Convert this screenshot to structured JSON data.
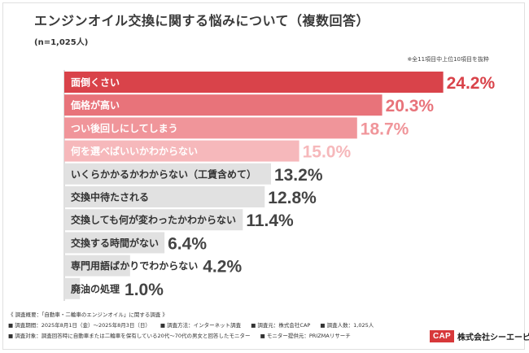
{
  "header": {
    "title": "エンジンオイル交換に関する悩みについて（複数回答）",
    "sample": "(n=1,025人)",
    "note": "※全11項目中上位10項目を抜粋"
  },
  "chart_data": {
    "type": "bar",
    "orientation": "horizontal",
    "xlim": [
      0,
      25
    ],
    "categories": [
      "面倒くさい",
      "価格が高い",
      "つい後回しにしてしまう",
      "何を選べばいいかわからない",
      "いくらかかるかわからない（工賃含めて）",
      "交換中待たされる",
      "交換しても何が変わったかわからない",
      "交換する時間がない",
      "専門用語ばかりでわからない",
      "廃油の処理"
    ],
    "values": [
      24.2,
      20.3,
      18.7,
      15.0,
      13.2,
      12.8,
      11.4,
      6.4,
      4.2,
      1.0
    ],
    "value_labels": [
      "24.2%",
      "20.3%",
      "18.7%",
      "15.0%",
      "13.2%",
      "12.8%",
      "11.4%",
      "6.4%",
      "4.2%",
      "1.0%"
    ],
    "colors": [
      "#d9434a",
      "#e8737a",
      "#f0959a",
      "#f6b8bb",
      "#e1e1e1",
      "#e1e1e1",
      "#e1e1e1",
      "#e1e1e1",
      "#e1e1e1",
      "#e1e1e1"
    ],
    "label_colors": [
      "#ffffff",
      "#ffffff",
      "#ffffff",
      "#ffffff",
      "#333333",
      "#333333",
      "#333333",
      "#333333",
      "#333333",
      "#333333"
    ],
    "value_colors": [
      "#d9434a",
      "#e8737a",
      "#f0959a",
      "#f6b8bb",
      "#444444",
      "#444444",
      "#444444",
      "#444444",
      "#444444",
      "#444444"
    ]
  },
  "survey": {
    "heading": "《 調査概要：「自動車・二輪車のエンジンオイル」に関する調査 》",
    "rows": [
      [
        "■ 調査期間：2025年8月1日（金）～2025年8月3日（日）",
        "■ 調査方法：インターネット調査",
        "■ 調査元：株式会社CAP",
        "■ 調査人数：1,025人"
      ],
      [
        "■ 調査対象：調査回答時に自動車または二輪車を保有している20代～70代の男女と回答したモニター",
        "■ モニター提供元：PRIZMAリサーチ"
      ]
    ]
  },
  "logo": {
    "mark": "CAP",
    "company": "株式会社シーエーピー"
  }
}
